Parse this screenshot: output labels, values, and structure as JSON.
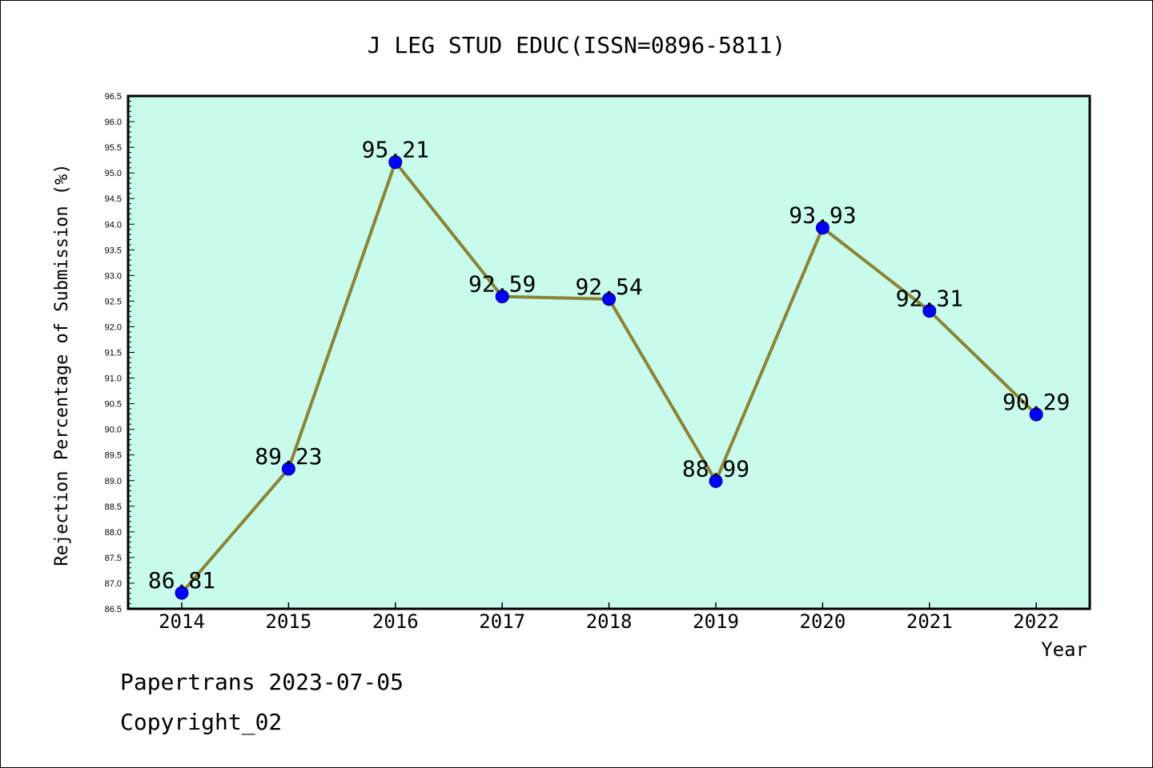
{
  "chart_data": {
    "type": "line",
    "title": "J LEG STUD EDUC(ISSN=0896-5811)",
    "xlabel": "Year",
    "ylabel": "Rejection Percentage of Submission (%)",
    "categories": [
      "2014",
      "2015",
      "2016",
      "2017",
      "2018",
      "2019",
      "2020",
      "2021",
      "2022"
    ],
    "values": [
      86.81,
      89.23,
      95.21,
      92.59,
      92.54,
      88.99,
      93.93,
      92.31,
      90.29
    ],
    "data_labels": [
      "86.81",
      "89.23",
      "95.21",
      "92.59",
      "92.54",
      "88.99",
      "93.93",
      "92.31",
      "90.29"
    ],
    "ylim": [
      86.5,
      96.5
    ],
    "yticks": [
      "86.5",
      "87.0",
      "87.5",
      "88.0",
      "88.5",
      "89.0",
      "89.5",
      "90.0",
      "90.5",
      "91.0",
      "91.5",
      "92.0",
      "92.5",
      "93.0",
      "93.5",
      "94.0",
      "94.5",
      "95.0",
      "95.5",
      "96.0",
      "96.5"
    ],
    "grid": false,
    "colors": {
      "plot_background": "#c8fbec",
      "line": "#8b8434",
      "marker": "#0000ff"
    }
  },
  "footer": {
    "date_text": "Papertrans 2023-07-05",
    "copyright_text": "Copyright_02"
  }
}
